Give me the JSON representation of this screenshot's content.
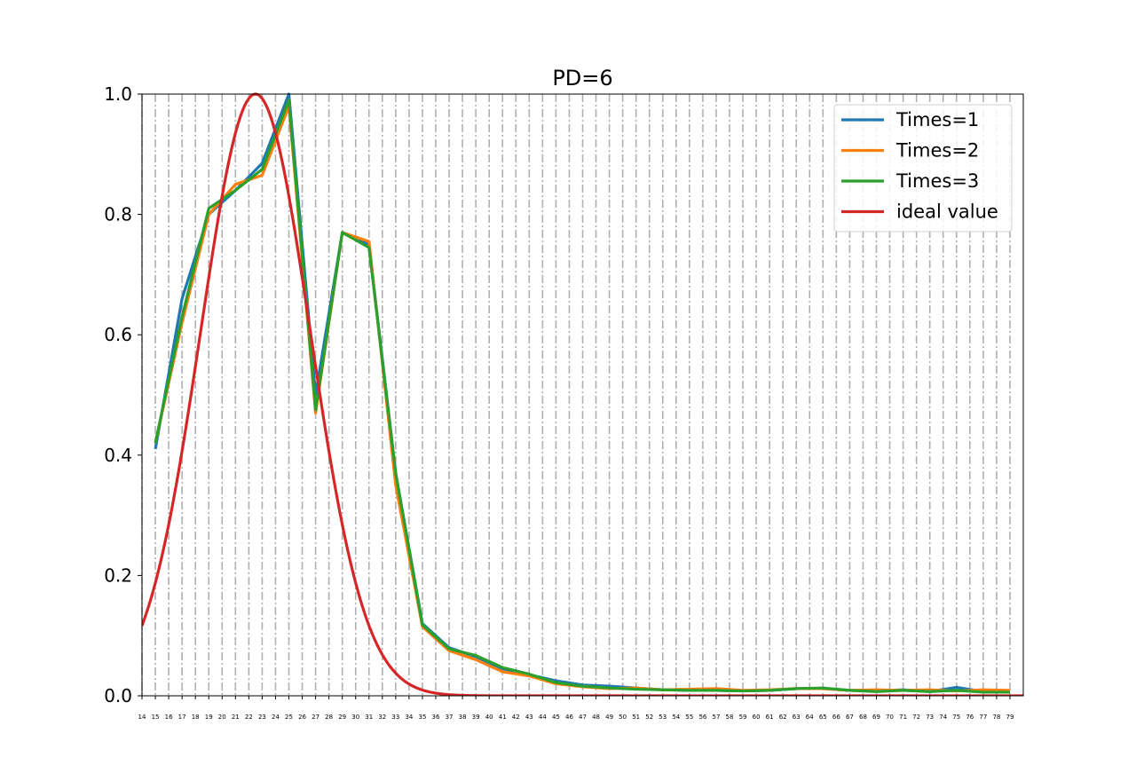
{
  "chart_data": {
    "type": "line",
    "title": "PD=6",
    "xlabel": "",
    "ylabel": "",
    "xlim": [
      14,
      80
    ],
    "ylim": [
      0,
      1.0
    ],
    "grid": "vertical dash-dot at every integer x",
    "legend_placement": "top-right",
    "x_ticks": [
      14,
      15,
      16,
      17,
      18,
      19,
      20,
      21,
      22,
      23,
      24,
      25,
      26,
      27,
      28,
      29,
      30,
      31,
      32,
      33,
      34,
      35,
      36,
      37,
      38,
      39,
      40,
      41,
      42,
      43,
      44,
      45,
      46,
      47,
      48,
      49,
      50,
      51,
      52,
      53,
      54,
      55,
      56,
      57,
      58,
      59,
      60,
      61,
      62,
      63,
      64,
      65,
      66,
      67,
      68,
      69,
      70,
      71,
      72,
      73,
      74,
      75,
      76,
      77,
      78,
      79
    ],
    "y_ticks": [
      "0.0",
      "0.2",
      "0.4",
      "0.6",
      "0.8",
      "1.0"
    ],
    "x": [
      15,
      17,
      19,
      21,
      23,
      25,
      27,
      29,
      31,
      33,
      35,
      37,
      39,
      41,
      43,
      45,
      47,
      49,
      51,
      53,
      55,
      57,
      59,
      61,
      63,
      65,
      67,
      69,
      71,
      73,
      75,
      77,
      79
    ],
    "series": [
      {
        "name": "Times=1",
        "color": "#1f77b4",
        "values": [
          0.41,
          0.66,
          0.8,
          0.84,
          0.885,
          1.0,
          0.5,
          0.77,
          0.75,
          0.37,
          0.12,
          0.08,
          0.065,
          0.045,
          0.035,
          0.025,
          0.018,
          0.016,
          0.013,
          0.01,
          0.009,
          0.009,
          0.008,
          0.009,
          0.012,
          0.012,
          0.009,
          0.008,
          0.01,
          0.007,
          0.014,
          0.007,
          0.006
        ]
      },
      {
        "name": "Times=2",
        "color": "#ff7f0e",
        "values": [
          0.42,
          0.62,
          0.8,
          0.85,
          0.865,
          0.98,
          0.47,
          0.77,
          0.755,
          0.35,
          0.115,
          0.075,
          0.06,
          0.04,
          0.033,
          0.02,
          0.015,
          0.012,
          0.013,
          0.01,
          0.011,
          0.012,
          0.009,
          0.01,
          0.012,
          0.012,
          0.009,
          0.01,
          0.009,
          0.01,
          0.008,
          0.01,
          0.009
        ]
      },
      {
        "name": "Times=3",
        "color": "#2ca02c",
        "values": [
          0.42,
          0.63,
          0.81,
          0.84,
          0.875,
          0.99,
          0.475,
          0.77,
          0.745,
          0.37,
          0.118,
          0.078,
          0.067,
          0.047,
          0.036,
          0.022,
          0.016,
          0.013,
          0.011,
          0.01,
          0.009,
          0.009,
          0.008,
          0.009,
          0.012,
          0.013,
          0.009,
          0.007,
          0.009,
          0.007,
          0.009,
          0.006,
          0.006
        ]
      },
      {
        "name": "ideal value",
        "color": "#d62728",
        "function": "gaussian",
        "mu": 22.5,
        "sigma": 4.1,
        "x_range": [
          14,
          80
        ]
      }
    ]
  }
}
